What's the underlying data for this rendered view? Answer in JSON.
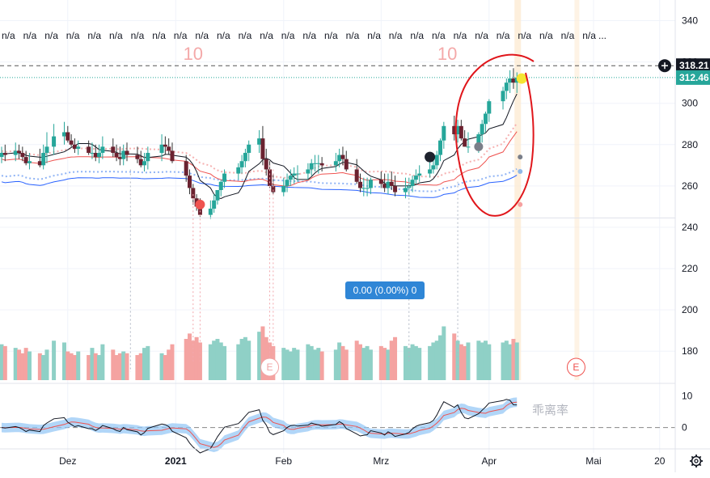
{
  "na_strip": {
    "text": "n/a",
    "count": 28
  },
  "markers": [
    {
      "label": "10",
      "date": "2021-01-06"
    },
    {
      "label": "10",
      "date": "2021-03-20"
    }
  ],
  "measure_label": "0.00 (0.00%) 0",
  "oscillator": {
    "label": "乖离率",
    "ylim": [
      -6,
      13
    ],
    "ticks": [
      10,
      0
    ]
  },
  "price_axis": {
    "ticks": [
      340,
      320,
      300,
      280,
      260,
      240,
      220,
      200,
      180
    ],
    "ylim": [
      166,
      350
    ]
  },
  "price_tags": [
    {
      "label": "318.21",
      "value": 318.21,
      "color": "#131722"
    },
    {
      "label": "312.46",
      "value": 312.46,
      "color": "#26a69a"
    }
  ],
  "time_axis": {
    "labels": [
      {
        "text": "Dez",
        "date": "2020-12-01"
      },
      {
        "text": "2021",
        "date": "2021-01-01"
      },
      {
        "text": "Feb",
        "date": "2021-02-01"
      },
      {
        "text": "Mrz",
        "date": "2021-03-01"
      },
      {
        "text": "Apr",
        "date": "2021-04-01"
      },
      {
        "text": "Mai",
        "date": "2021-05-01"
      },
      {
        "text": "20",
        "date": "2021-05-20"
      }
    ],
    "range": [
      "2020-11-12",
      "2021-05-24"
    ]
  },
  "earnings_labels": [
    {
      "text": "E",
      "date": "2021-01-28"
    },
    {
      "text": "E",
      "date": "2021-04-26"
    }
  ],
  "colors": {
    "up": "#26a69a",
    "down": "#ef5350",
    "vol_up": "#8fd0c6",
    "vol_down": "#f4a3a1",
    "ma_short": "#131722",
    "ma_mid": "#ef5350",
    "ma_long": "#2962ff",
    "annotation": "#e0161b"
  },
  "chart_data": {
    "type": "candlestick",
    "dates": [
      "2020-11-12",
      "2020-11-13",
      "2020-11-16",
      "2020-11-17",
      "2020-11-18",
      "2020-11-19",
      "2020-11-20",
      "2020-11-23",
      "2020-11-24",
      "2020-11-25",
      "2020-11-27",
      "2020-11-30",
      "2020-12-01",
      "2020-12-02",
      "2020-12-03",
      "2020-12-04",
      "2020-12-07",
      "2020-12-08",
      "2020-12-09",
      "2020-12-10",
      "2020-12-11",
      "2020-12-14",
      "2020-12-15",
      "2020-12-16",
      "2020-12-17",
      "2020-12-18",
      "2020-12-21",
      "2020-12-22",
      "2020-12-23",
      "2020-12-24",
      "2020-12-28",
      "2020-12-29",
      "2020-12-30",
      "2020-12-31",
      "2021-01-04",
      "2021-01-05",
      "2021-01-06",
      "2021-01-07",
      "2021-01-08",
      "2021-01-11",
      "2021-01-12",
      "2021-01-13",
      "2021-01-14",
      "2021-01-15",
      "2021-01-19",
      "2021-01-20",
      "2021-01-21",
      "2021-01-22",
      "2021-01-25",
      "2021-01-26",
      "2021-01-27",
      "2021-01-28",
      "2021-01-29",
      "2021-02-01",
      "2021-02-02",
      "2021-02-03",
      "2021-02-04",
      "2021-02-05",
      "2021-02-08",
      "2021-02-09",
      "2021-02-10",
      "2021-02-11",
      "2021-02-12",
      "2021-02-16",
      "2021-02-17",
      "2021-02-18",
      "2021-02-19",
      "2021-02-22",
      "2021-02-23",
      "2021-02-24",
      "2021-02-25",
      "2021-02-26",
      "2021-03-01",
      "2021-03-02",
      "2021-03-03",
      "2021-03-04",
      "2021-03-05",
      "2021-03-08",
      "2021-03-09",
      "2021-03-10",
      "2021-03-11",
      "2021-03-12",
      "2021-03-15",
      "2021-03-16",
      "2021-03-17",
      "2021-03-18",
      "2021-03-19",
      "2021-03-22",
      "2021-03-23",
      "2021-03-24",
      "2021-03-25",
      "2021-03-26",
      "2021-03-29",
      "2021-03-30",
      "2021-03-31",
      "2021-04-01",
      "2021-04-05",
      "2021-04-06",
      "2021-04-07",
      "2021-04-08",
      "2021-04-09"
    ],
    "open": [
      274,
      276,
      275,
      277,
      276,
      274,
      271,
      272,
      270,
      276,
      279,
      284,
      286,
      282,
      280,
      278,
      279,
      276,
      276,
      274,
      276,
      279,
      276,
      274,
      273,
      277,
      275,
      273,
      270,
      272,
      276,
      280,
      279,
      277,
      272,
      265,
      259,
      254,
      250,
      246,
      249,
      253,
      258,
      262,
      266,
      269,
      272,
      276,
      280,
      283,
      273,
      268,
      260,
      257,
      260,
      263,
      265,
      266,
      266,
      268,
      271,
      271,
      271,
      270,
      272,
      275,
      273,
      268,
      262,
      259,
      259,
      259,
      263,
      261,
      259,
      262,
      260,
      257,
      259,
      260,
      263,
      265,
      266,
      268,
      270,
      275,
      282,
      289,
      285,
      289,
      283,
      279,
      279,
      285,
      290,
      295,
      301,
      306,
      310,
      312,
      310
    ],
    "high": [
      279,
      280,
      281,
      280,
      279,
      277,
      276,
      278,
      280,
      286,
      290,
      291,
      289,
      285,
      283,
      282,
      282,
      281,
      280,
      280,
      284,
      283,
      280,
      279,
      280,
      281,
      279,
      277,
      276,
      279,
      285,
      284,
      283,
      281,
      275,
      268,
      261,
      256,
      254,
      253,
      256,
      258,
      263,
      268,
      271,
      275,
      278,
      282,
      287,
      289,
      278,
      272,
      266,
      264,
      266,
      268,
      269,
      270,
      271,
      273,
      275,
      275,
      274,
      276,
      278,
      279,
      277,
      273,
      266,
      264,
      264,
      264,
      267,
      266,
      266,
      267,
      265,
      264,
      264,
      265,
      268,
      270,
      272,
      273,
      277,
      283,
      291,
      294,
      292,
      292,
      287,
      286,
      286,
      292,
      296,
      302,
      308,
      312,
      316,
      317,
      315
    ],
    "low": [
      271,
      272,
      272,
      273,
      272,
      270,
      268,
      269,
      268,
      271,
      275,
      280,
      281,
      279,
      276,
      275,
      275,
      273,
      272,
      271,
      273,
      274,
      272,
      270,
      270,
      272,
      271,
      269,
      267,
      268,
      272,
      275,
      275,
      271,
      262,
      256,
      251,
      248,
      245,
      244,
      247,
      251,
      255,
      259,
      263,
      266,
      269,
      272,
      276,
      270,
      265,
      259,
      256,
      255,
      257,
      260,
      261,
      262,
      263,
      265,
      267,
      266,
      267,
      267,
      269,
      270,
      267,
      261,
      257,
      255,
      255,
      256,
      259,
      257,
      256,
      258,
      255,
      254,
      255,
      257,
      261,
      262,
      264,
      266,
      268,
      272,
      278,
      282,
      281,
      282,
      279,
      276,
      276,
      281,
      286,
      291,
      297,
      302,
      305,
      307,
      305
    ],
    "close": [
      276,
      275,
      277,
      276,
      274,
      271,
      272,
      270,
      276,
      279,
      284,
      286,
      282,
      280,
      278,
      279,
      276,
      276,
      274,
      276,
      279,
      276,
      274,
      273,
      277,
      275,
      273,
      270,
      272,
      276,
      280,
      279,
      277,
      272,
      265,
      259,
      254,
      250,
      246,
      249,
      253,
      258,
      262,
      266,
      269,
      272,
      276,
      280,
      283,
      273,
      268,
      260,
      257,
      260,
      263,
      265,
      266,
      266,
      268,
      271,
      271,
      271,
      270,
      272,
      275,
      273,
      268,
      262,
      259,
      259,
      259,
      263,
      261,
      259,
      262,
      260,
      257,
      259,
      260,
      263,
      265,
      266,
      268,
      270,
      275,
      282,
      289,
      285,
      289,
      283,
      279,
      279,
      285,
      290,
      295,
      301,
      306,
      310,
      312,
      310,
      312.46
    ],
    "volume": [
      20,
      19,
      18,
      17,
      15,
      18,
      16,
      15,
      14,
      17,
      22,
      21,
      16,
      15,
      14,
      16,
      14,
      18,
      15,
      14,
      20,
      17,
      14,
      15,
      16,
      15,
      14,
      15,
      18,
      19,
      15,
      14,
      17,
      20,
      23,
      26,
      22,
      24,
      21,
      20,
      22,
      23,
      21,
      19,
      20,
      23,
      24,
      22,
      27,
      30,
      24,
      21,
      19,
      18,
      17,
      16,
      18,
      17,
      20,
      19,
      17,
      18,
      16,
      17,
      21,
      19,
      17,
      22,
      20,
      18,
      19,
      17,
      19,
      18,
      17,
      22,
      24,
      19,
      18,
      20,
      19,
      18,
      19,
      21,
      22,
      25,
      30,
      26,
      22,
      20,
      19,
      21,
      22,
      21,
      22,
      20,
      21,
      22,
      20,
      23,
      21
    ],
    "ylim": [
      166,
      350
    ],
    "ma_short_label": "",
    "ma_mid_label": "",
    "ma_long_label": ""
  }
}
